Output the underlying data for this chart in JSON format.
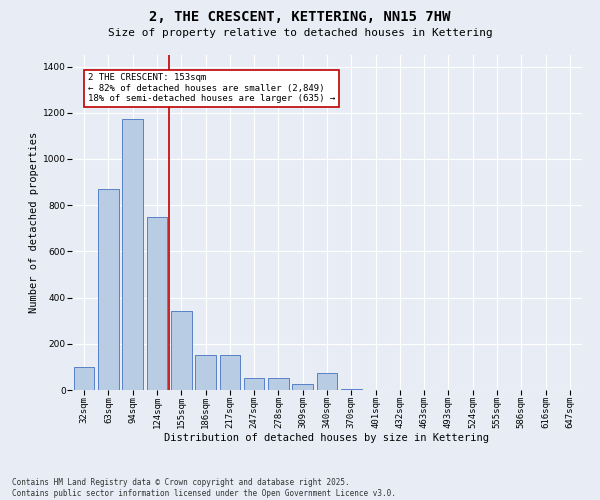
{
  "title": "2, THE CRESCENT, KETTERING, NN15 7HW",
  "subtitle": "Size of property relative to detached houses in Kettering",
  "xlabel": "Distribution of detached houses by size in Kettering",
  "ylabel": "Number of detached properties",
  "categories": [
    "32sqm",
    "63sqm",
    "94sqm",
    "124sqm",
    "155sqm",
    "186sqm",
    "217sqm",
    "247sqm",
    "278sqm",
    "309sqm",
    "340sqm",
    "370sqm",
    "401sqm",
    "432sqm",
    "463sqm",
    "493sqm",
    "524sqm",
    "555sqm",
    "586sqm",
    "616sqm",
    "647sqm"
  ],
  "values": [
    100,
    870,
    1175,
    750,
    340,
    150,
    150,
    50,
    50,
    25,
    75,
    5,
    0,
    0,
    0,
    0,
    0,
    0,
    0,
    0,
    0
  ],
  "bar_color": "#b8cce4",
  "bar_edge_color": "#4472c4",
  "property_line_color": "#c00000",
  "property_line_x": 3.5,
  "annotation_text": "2 THE CRESCENT: 153sqm\n← 82% of detached houses are smaller (2,849)\n18% of semi-detached houses are larger (635) →",
  "annotation_box_color": "#c00000",
  "ylim": [
    0,
    1450
  ],
  "yticks": [
    0,
    200,
    400,
    600,
    800,
    1000,
    1200,
    1400
  ],
  "bg_color": "#e8edf5",
  "plot_bg_color": "#e8edf5",
  "grid_color": "#ffffff",
  "footnote": "Contains HM Land Registry data © Crown copyright and database right 2025.\nContains public sector information licensed under the Open Government Licence v3.0.",
  "title_fontsize": 10,
  "subtitle_fontsize": 8,
  "label_fontsize": 7.5,
  "tick_fontsize": 6.5,
  "footnote_fontsize": 5.5,
  "annotation_fontsize": 6.5
}
